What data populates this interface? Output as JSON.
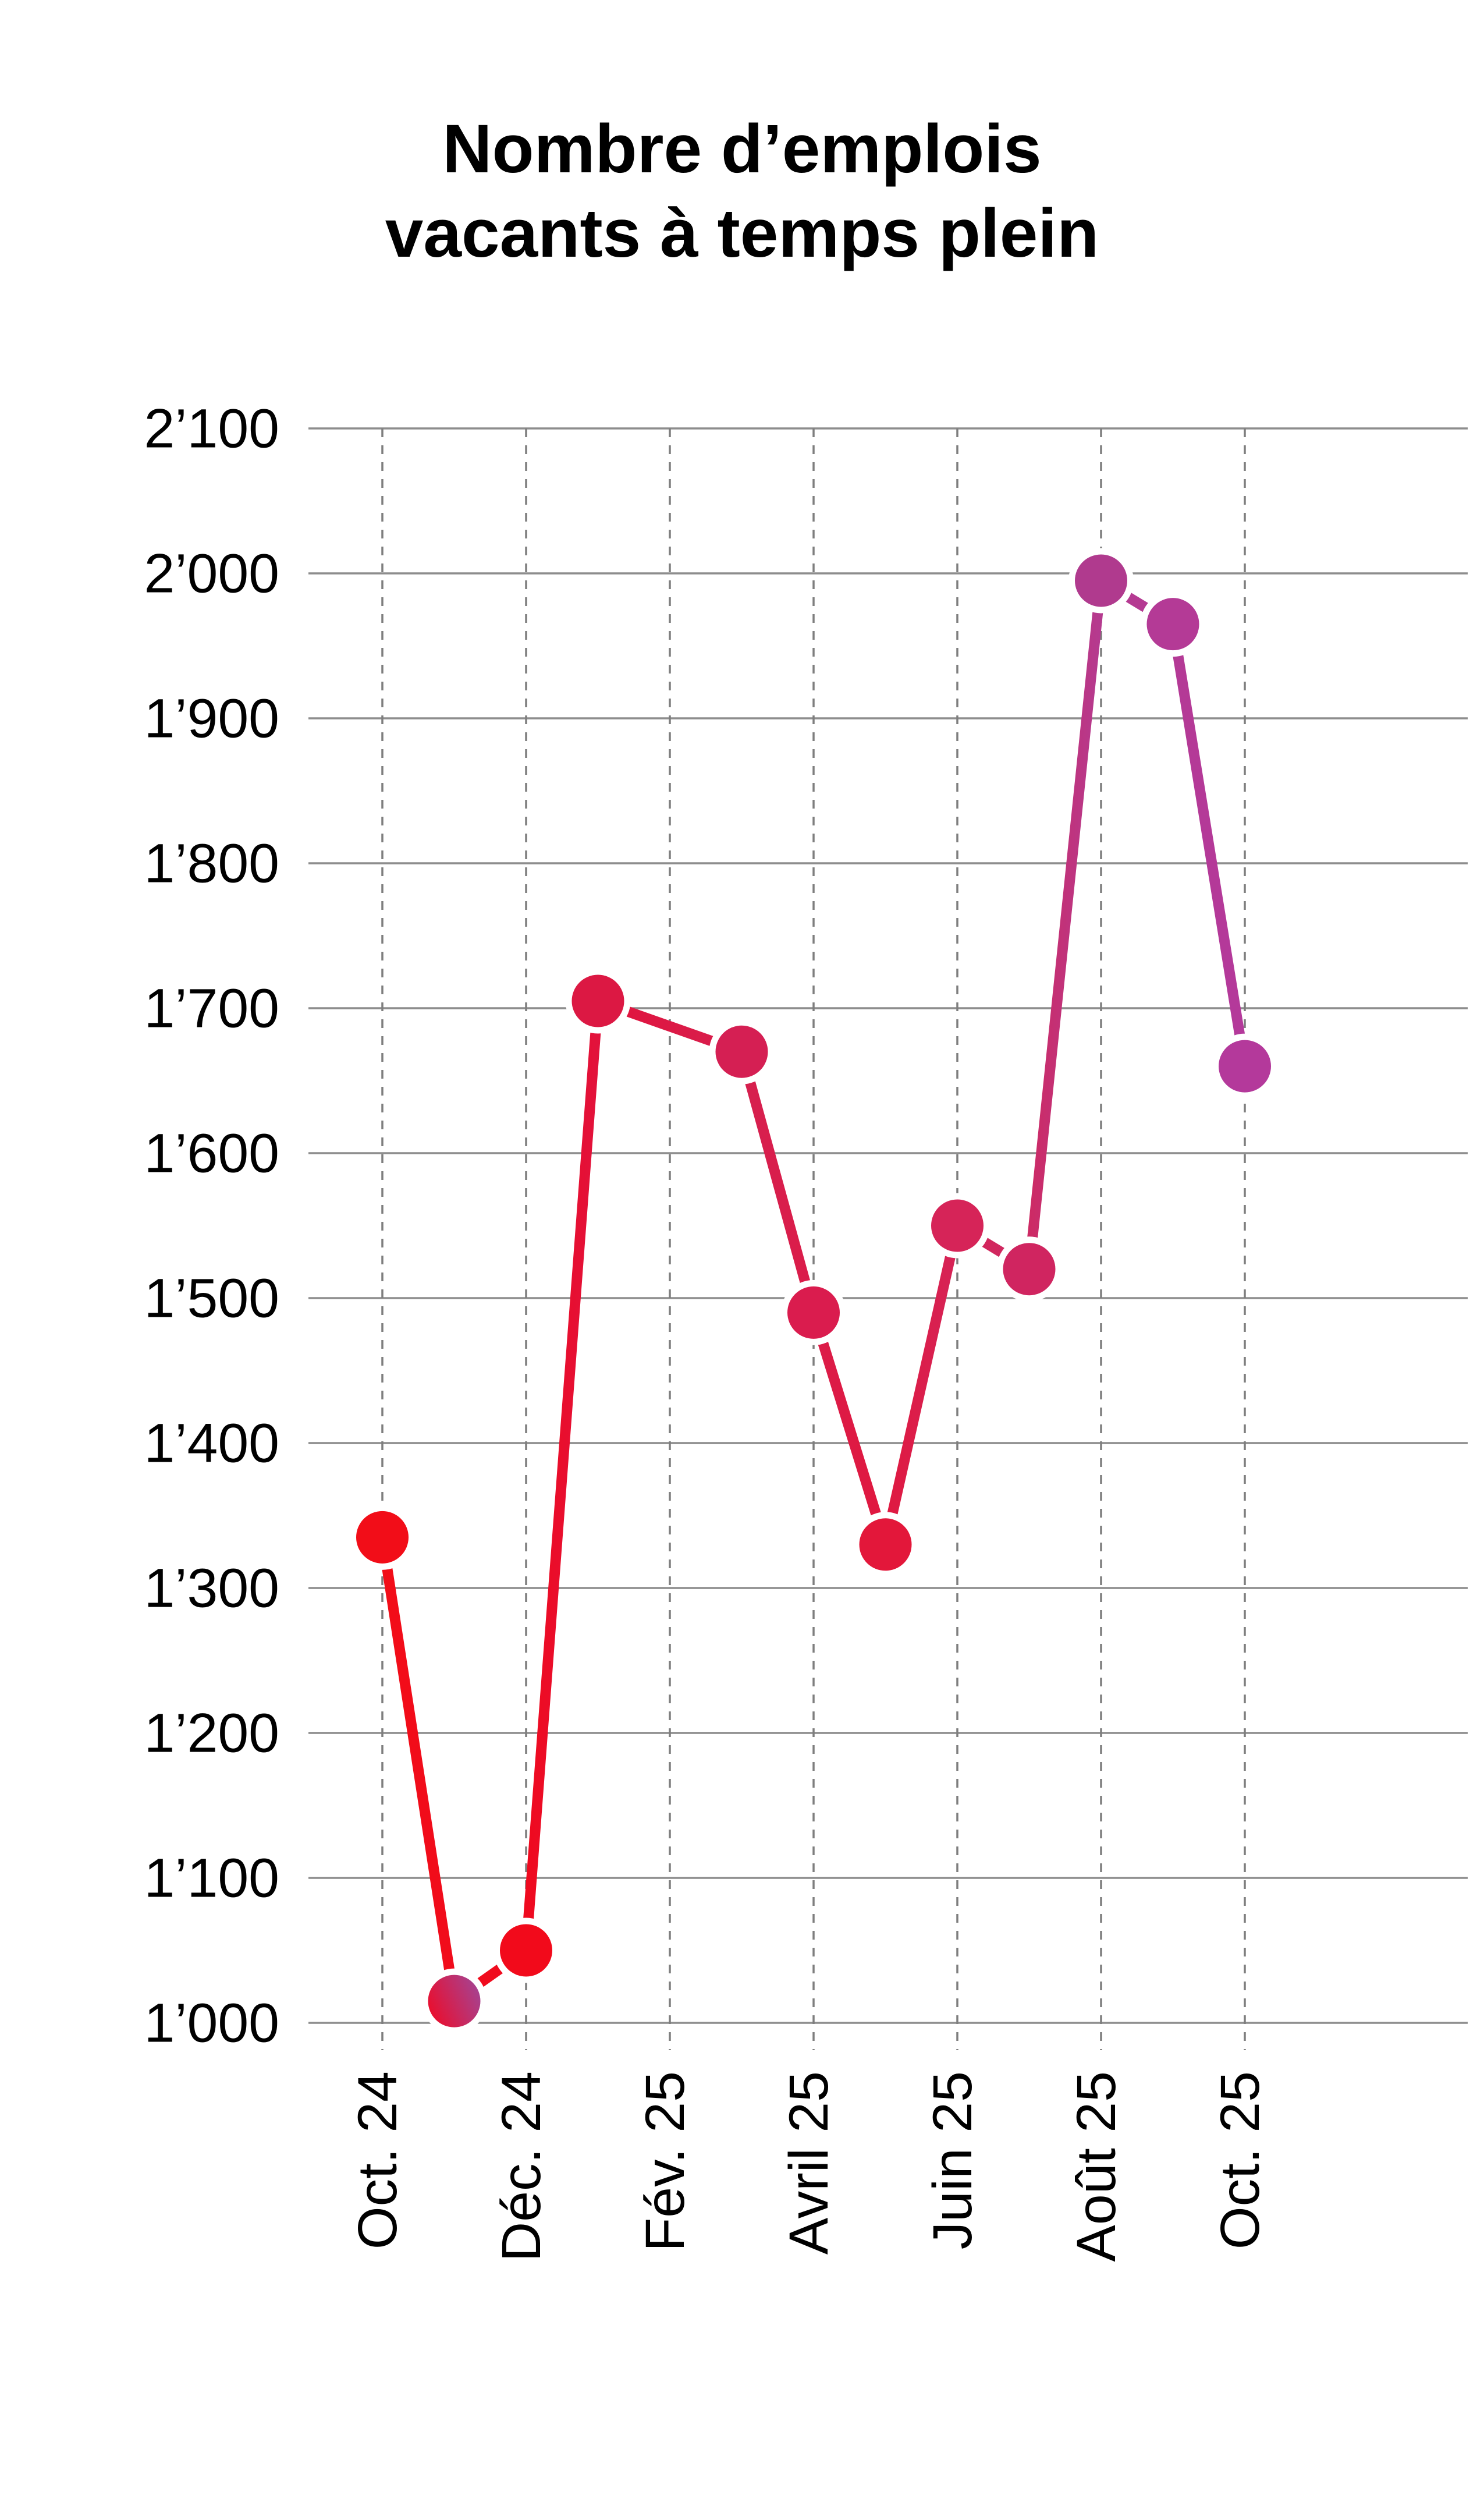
{
  "title": {
    "line1": "Nombre d’emplois",
    "line2": "vacants à temps plein"
  },
  "chart_data": {
    "type": "line",
    "title": "Nombre d’emplois vacants à temps plein",
    "grid": "on",
    "y_axis": {
      "min": 1000,
      "max": 2100,
      "tick_step": 100,
      "tick_labels_top_to_bottom": [
        "2’100",
        "2’000",
        "1’900",
        "1’800",
        "1’700",
        "1’600",
        "1’500",
        "1’400",
        "1’300",
        "1’200",
        "1’100",
        "1’000"
      ]
    },
    "x_axis": {
      "tick_labels": [
        "Oct. 24",
        "Déc. 24",
        "Fév. 25",
        "Avril 25",
        "Juin 25",
        "Août 25",
        "Oct. 25"
      ],
      "tick_month_offsets": [
        0,
        2,
        4,
        6,
        8,
        10,
        12
      ]
    },
    "series": [
      {
        "points": [
          {
            "month_offset": 0,
            "value": 1335,
            "color": "#f20d18"
          },
          {
            "month_offset": 1,
            "value": 1015,
            "color": "#e90f2f",
            "color_end": "#a8418e"
          },
          {
            "month_offset": 2,
            "value": 1050,
            "color": "#f20a1b"
          },
          {
            "month_offset": 3,
            "value": 1705,
            "color": "#dc1843"
          },
          {
            "month_offset": 5,
            "value": 1670,
            "color": "#d51f53"
          },
          {
            "month_offset": 6,
            "value": 1490,
            "color": "#da1c4e"
          },
          {
            "month_offset": 7,
            "value": 1330,
            "color": "#e3173a"
          },
          {
            "month_offset": 8,
            "value": 1550,
            "color": "#d62458"
          },
          {
            "month_offset": 9,
            "value": 1520,
            "color": "#d02560"
          },
          {
            "month_offset": 10,
            "value": 1995,
            "color": "#b03a8e"
          },
          {
            "month_offset": 11,
            "value": 1965,
            "color": "#b43a96"
          },
          {
            "month_offset": 12,
            "value": 1660,
            "color": "#b4399b"
          }
        ]
      }
    ],
    "style": {
      "background": "#ffffff",
      "text_color": "#000000",
      "solid_gridline_color": "#8d8d8d",
      "dashed_gridline_color": "#7e7e7e",
      "marker_halo_color": "#ffffff",
      "line_gradient_stops": [
        {
          "offset": 0.0,
          "color": "#f20d18"
        },
        {
          "offset": 0.17,
          "color": "#ef0a1f"
        },
        {
          "offset": 0.25,
          "color": "#e2123c"
        },
        {
          "offset": 0.42,
          "color": "#d6204f"
        },
        {
          "offset": 0.5,
          "color": "#db1c49"
        },
        {
          "offset": 0.58,
          "color": "#e0183f"
        },
        {
          "offset": 0.67,
          "color": "#d52458"
        },
        {
          "offset": 0.75,
          "color": "#cd2a64"
        },
        {
          "offset": 0.83,
          "color": "#b53a8f"
        },
        {
          "offset": 1.0,
          "color": "#b4399b"
        }
      ]
    }
  }
}
